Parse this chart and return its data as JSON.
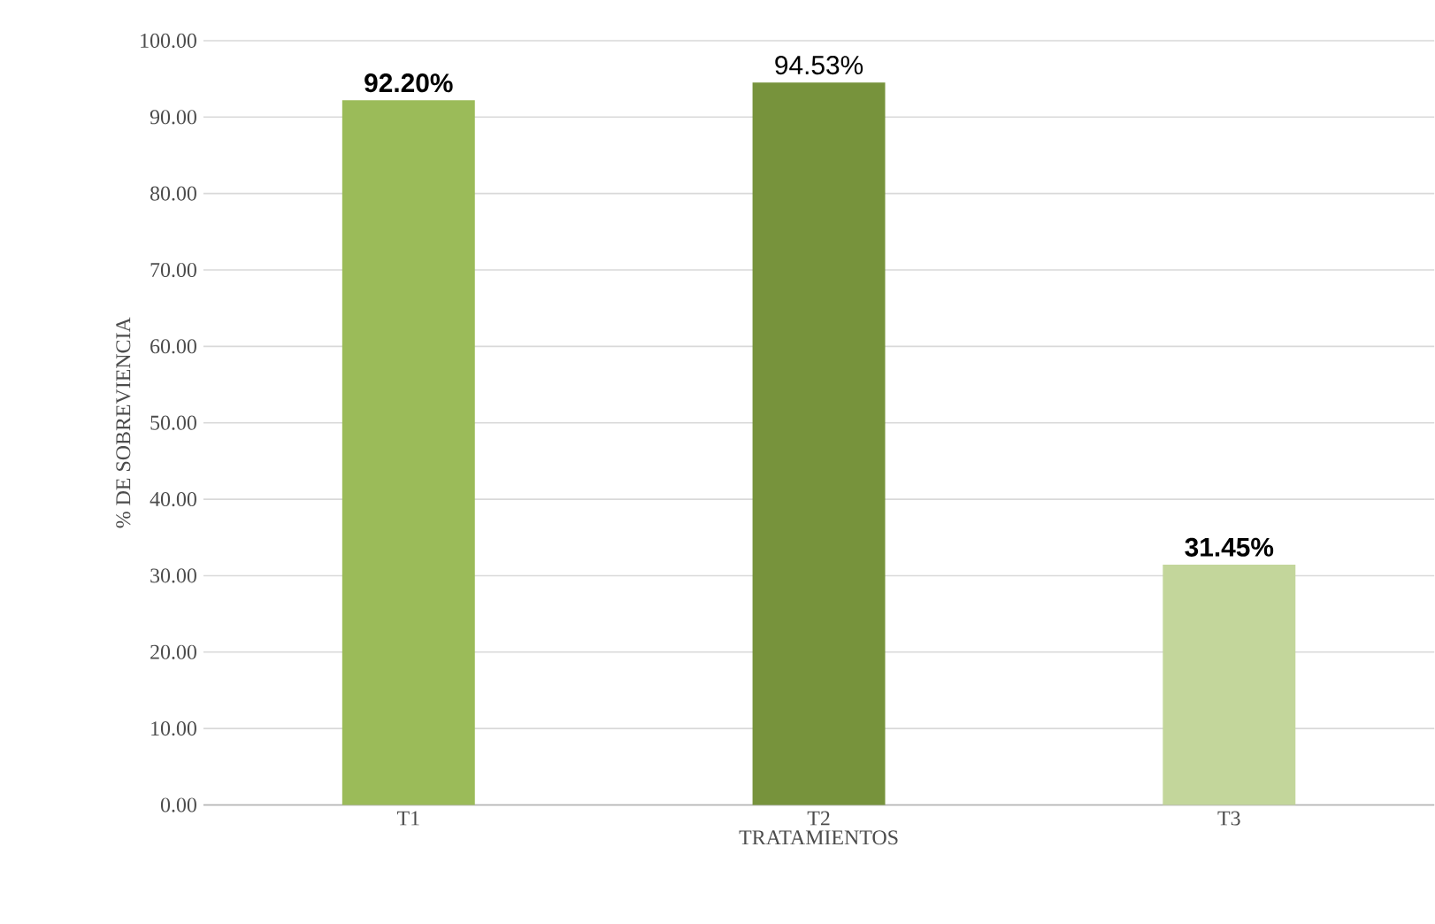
{
  "chart_data": {
    "type": "bar",
    "xlabel": "TRATAMIENTOS",
    "ylabel": "% DE SOBREVIENCIA",
    "categories": [
      "T1",
      "T2",
      "T3"
    ],
    "values": [
      92.2,
      94.53,
      31.45
    ],
    "colors": [
      "#9bbb59",
      "#77933c",
      "#c3d69b"
    ],
    "value_labels": [
      "**92.20%**",
      "94.53%",
      "**31.45%**"
    ],
    "ylim": [
      0,
      100
    ],
    "yticks": [
      {
        "value": 0,
        "label": "0.00"
      },
      {
        "value": 10,
        "label": "10.00"
      },
      {
        "value": 20,
        "label": "20.00"
      },
      {
        "value": 30,
        "label": "30.00"
      },
      {
        "value": 40,
        "label": "40.00"
      },
      {
        "value": 50,
        "label": "50.00"
      },
      {
        "value": 60,
        "label": "60.00"
      },
      {
        "value": 70,
        "label": "70.00"
      },
      {
        "value": 80,
        "label": "80.00"
      },
      {
        "value": 90,
        "label": "90.00"
      },
      {
        "value": 100,
        "label": "100.00"
      }
    ],
    "grid": "y"
  }
}
